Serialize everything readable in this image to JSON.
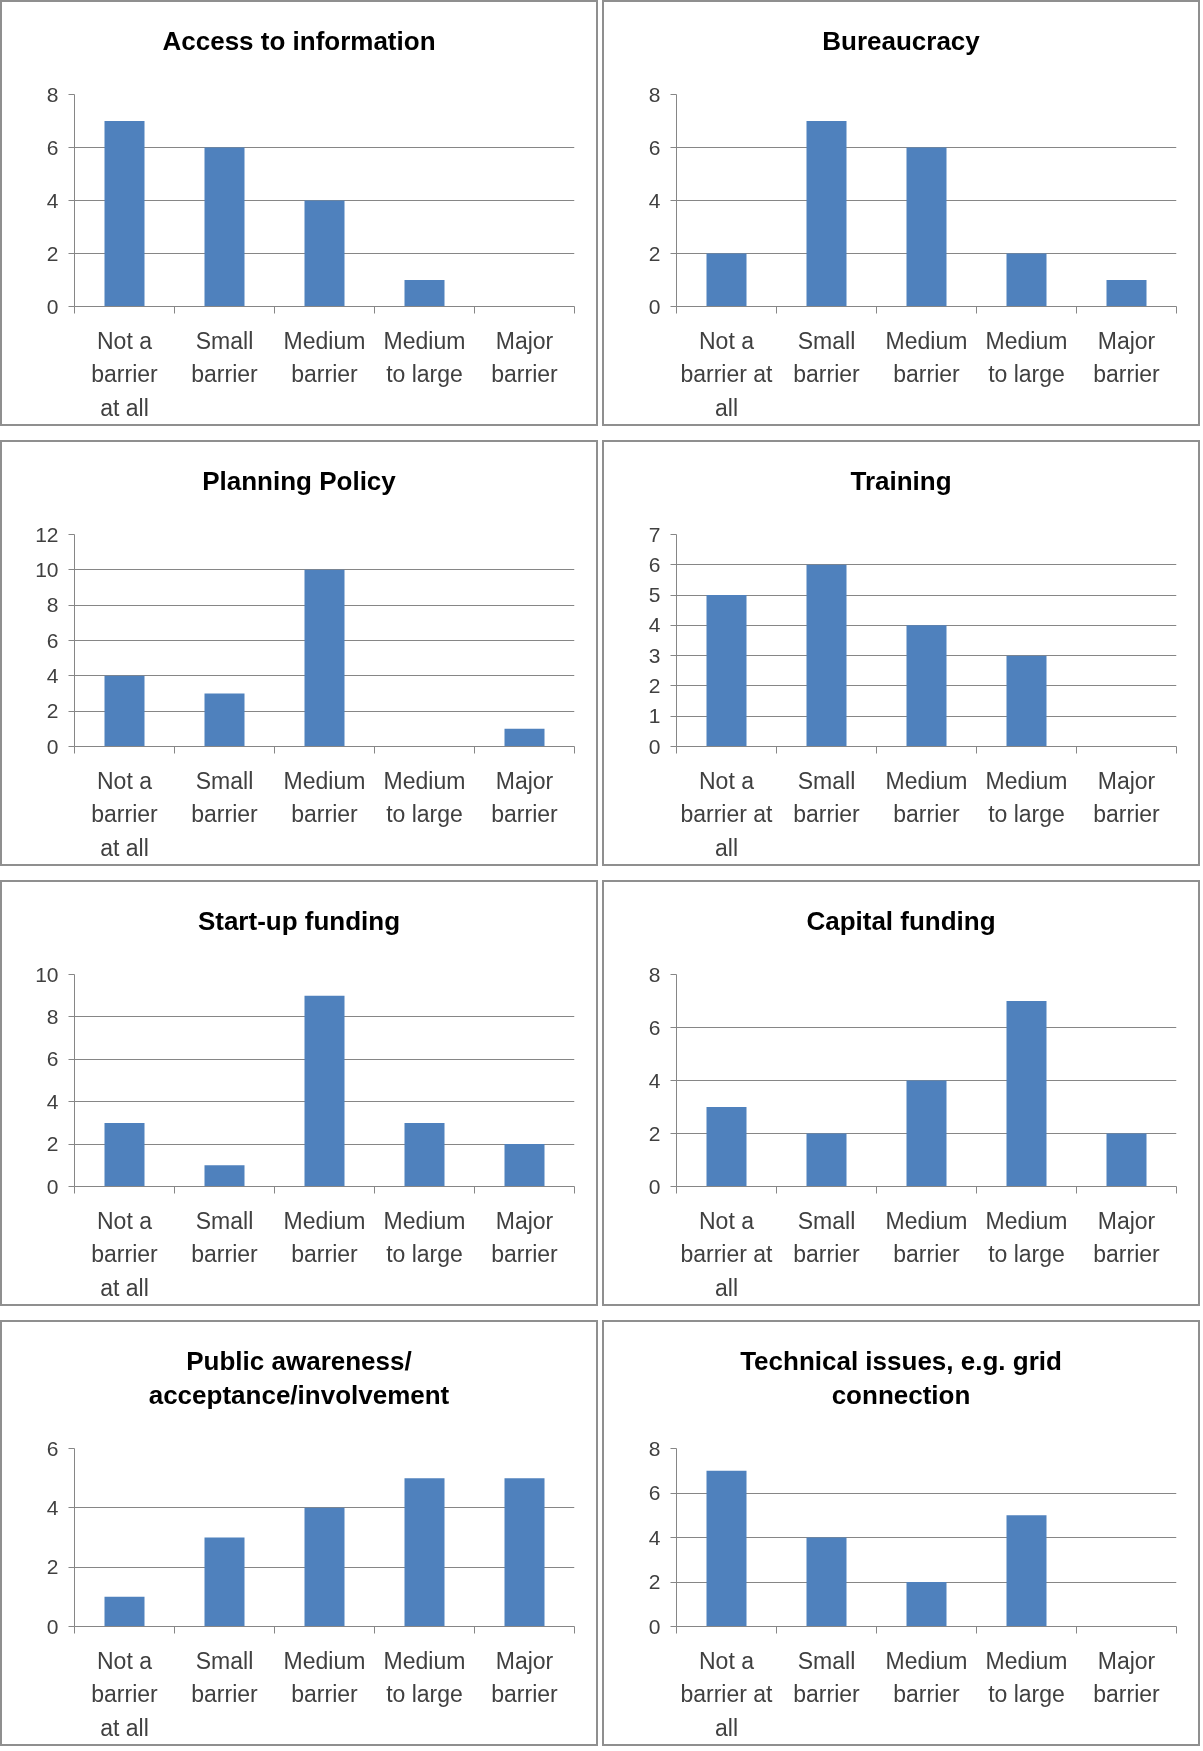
{
  "chart_data": [
    {
      "type": "bar",
      "title": "Access to information",
      "categories": [
        "Not a barrier at all",
        "Small barrier",
        "Medium barrier",
        "Medium to large",
        "Major barrier"
      ],
      "values": [
        7,
        6,
        4,
        1,
        0
      ],
      "color": "#4f81bd",
      "ylim": [
        0,
        8
      ],
      "yticks": [
        0,
        2,
        4,
        6,
        8
      ],
      "grid": "y"
    },
    {
      "type": "bar",
      "title": "Bureaucracy",
      "categories": [
        "Not a barrier at all",
        "Small barrier",
        "Medium barrier",
        "Medium to large",
        "Major barrier"
      ],
      "values": [
        2,
        7,
        6,
        2,
        1
      ],
      "color": "#4f81bd",
      "ylim": [
        0,
        8
      ],
      "yticks": [
        0,
        2,
        4,
        6,
        8
      ],
      "grid": "y"
    },
    {
      "type": "bar",
      "title": "Planning Policy",
      "categories": [
        "Not a barrier at all",
        "Small barrier",
        "Medium barrier",
        "Medium to large",
        "Major barrier"
      ],
      "values": [
        4,
        3,
        10,
        0,
        1
      ],
      "color": "#4f81bd",
      "ylim": [
        0,
        12
      ],
      "yticks": [
        0,
        2,
        4,
        6,
        8,
        10,
        12
      ],
      "grid": "y"
    },
    {
      "type": "bar",
      "title": "Training",
      "categories": [
        "Not a barrier at all",
        "Small barrier",
        "Medium barrier",
        "Medium to large",
        "Major barrier"
      ],
      "values": [
        5,
        6,
        4,
        3,
        0
      ],
      "color": "#4f81bd",
      "ylim": [
        0,
        7
      ],
      "yticks": [
        0,
        1,
        2,
        3,
        4,
        5,
        6,
        7
      ],
      "grid": "y"
    },
    {
      "type": "bar",
      "title": "Start-up funding",
      "categories": [
        "Not a barrier at all",
        "Small barrier",
        "Medium barrier",
        "Medium to large",
        "Major barrier"
      ],
      "values": [
        3,
        1,
        9,
        3,
        2
      ],
      "color": "#4f81bd",
      "ylim": [
        0,
        10
      ],
      "yticks": [
        0,
        2,
        4,
        6,
        8,
        10
      ],
      "grid": "y"
    },
    {
      "type": "bar",
      "title": "Capital funding",
      "categories": [
        "Not a barrier at all",
        "Small barrier",
        "Medium barrier",
        "Medium to large",
        "Major barrier"
      ],
      "values": [
        3,
        2,
        4,
        7,
        2
      ],
      "color": "#4f81bd",
      "ylim": [
        0,
        8
      ],
      "yticks": [
        0,
        2,
        4,
        6,
        8
      ],
      "grid": "y"
    },
    {
      "type": "bar",
      "title": "Public awareness/acceptance/involvement",
      "categories": [
        "Not a barrier at all",
        "Small barrier",
        "Medium barrier",
        "Medium to large",
        "Major barrier"
      ],
      "values": [
        1,
        3,
        4,
        5,
        5
      ],
      "color": "#4f81bd",
      "ylim": [
        0,
        6
      ],
      "yticks": [
        0,
        2,
        4,
        6
      ],
      "grid": "y"
    },
    {
      "type": "bar",
      "title": "Technical issues, e.g. grid connection",
      "categories": [
        "Not a barrier at all",
        "Small barrier",
        "Medium barrier",
        "Medium to large",
        "Major barrier"
      ],
      "values": [
        7,
        4,
        2,
        5,
        0
      ],
      "color": "#4f81bd",
      "ylim": [
        0,
        8
      ],
      "yticks": [
        0,
        2,
        4,
        6,
        8
      ],
      "grid": "y"
    }
  ]
}
